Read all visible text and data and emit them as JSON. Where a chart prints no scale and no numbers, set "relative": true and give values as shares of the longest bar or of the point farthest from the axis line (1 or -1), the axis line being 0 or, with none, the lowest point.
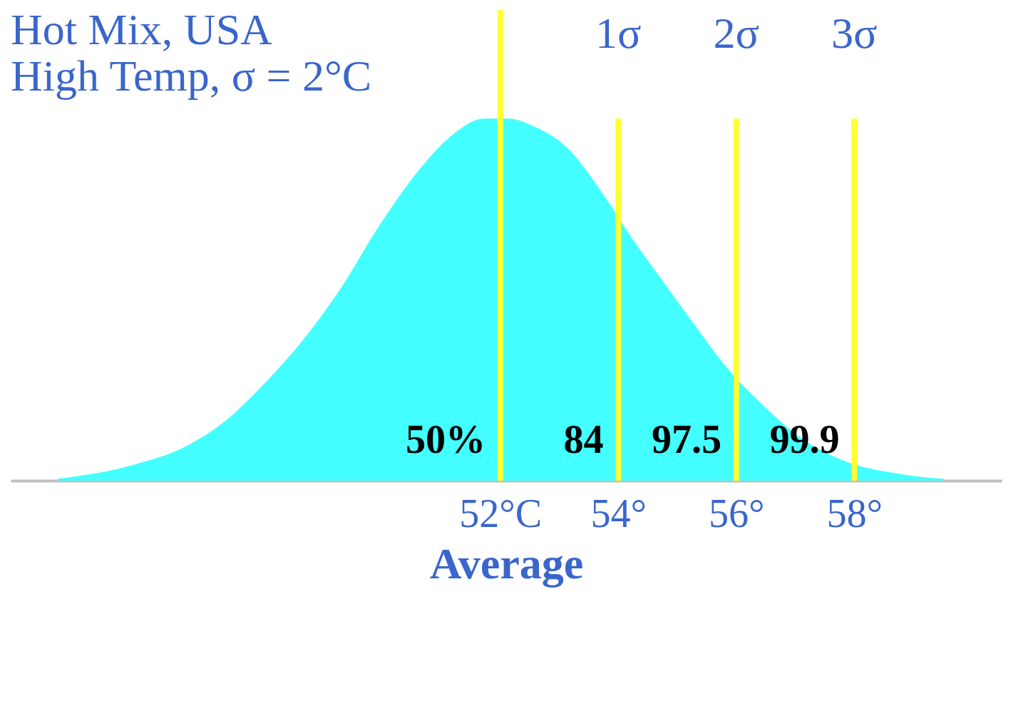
{
  "chart_data": {
    "type": "area",
    "title": "Hot Mix, USA",
    "subtitle": "High Temp, σ = 2°C",
    "xlabel": "Average",
    "relative": true,
    "x": [
      44.5,
      45.69,
      46.73,
      47.26,
      48.01,
      48.71,
      49.29,
      49.93,
      50.63,
      51.15,
      51.73,
      52.14,
      52.55,
      53.13,
      53.79,
      54.23,
      54.76,
      55.34,
      55.8,
      56.38,
      57.08,
      57.9,
      58.71,
      59.52
    ],
    "series": [
      {
        "color": "#44ffff",
        "values": [
          0.005,
          0.04,
          0.1,
          0.155,
          0.27,
          0.4,
          0.53,
          0.7,
          0.86,
          0.95,
          1,
          1,
          0.98,
          0.92,
          0.78,
          0.67,
          0.55,
          0.42,
          0.32,
          0.22,
          0.12,
          0.05,
          0.02,
          0.005
        ]
      }
    ],
    "xlim": [
      43.7,
      60.5
    ],
    "xticks": [
      {
        "value": 52,
        "label": "52°C"
      },
      {
        "value": 54,
        "label": "54°"
      },
      {
        "value": 56,
        "label": "56°"
      },
      {
        "value": 58,
        "label": "58°"
      }
    ],
    "ref_lines": [
      {
        "axis": "x",
        "value": 52,
        "label": null,
        "color": "#ffff33"
      },
      {
        "axis": "x",
        "value": 54,
        "label": "1σ",
        "color": "#ffff33"
      },
      {
        "axis": "x",
        "value": 56,
        "label": "2σ",
        "color": "#ffff33"
      },
      {
        "axis": "x",
        "value": 58,
        "label": "3σ",
        "color": "#ffff33"
      }
    ],
    "annotations": [
      "50%",
      "84",
      "97.5",
      "99.9"
    ]
  }
}
